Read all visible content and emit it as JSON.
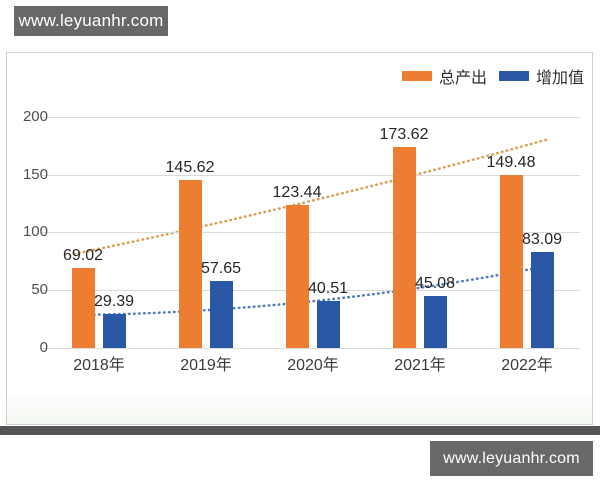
{
  "watermarks": {
    "top": "www.leyuanhr.com",
    "bottom": "www.leyuanhr.com"
  },
  "legend": {
    "position": "top-right",
    "items": [
      {
        "label": "总产出",
        "color": "#ED7D31"
      },
      {
        "label": "增加值",
        "color": "#2B57A7"
      }
    ]
  },
  "chart_data": {
    "type": "bar",
    "title": "",
    "xlabel": "",
    "ylabel": "",
    "categories": [
      "2018年",
      "2019年",
      "2020年",
      "2021年",
      "2022年"
    ],
    "series": [
      {
        "name": "总产出",
        "color": "#ED7D31",
        "values": [
          69.02,
          145.62,
          123.44,
          173.62,
          149.48
        ]
      },
      {
        "name": "增加值",
        "color": "#2B57A7",
        "values": [
          29.39,
          57.65,
          40.51,
          45.08,
          83.09
        ]
      }
    ],
    "y_ticks": [
      0,
      50,
      100,
      150,
      200
    ],
    "ylim": [
      0,
      220
    ],
    "grid": true,
    "legend_position": "top-right",
    "trendlines": [
      {
        "series": "总产出",
        "style": "dotted",
        "color": "#D3953F"
      },
      {
        "series": "增加值",
        "style": "dotted",
        "color": "#3F6CB3"
      }
    ]
  },
  "colors": {
    "panel_border": "#ccd3cc",
    "gridline": "#dadada",
    "shadow_strip": "#565656",
    "watermark_bg": "#686868",
    "axis_text": "#4f4f4f",
    "label_text": "#262626"
  }
}
